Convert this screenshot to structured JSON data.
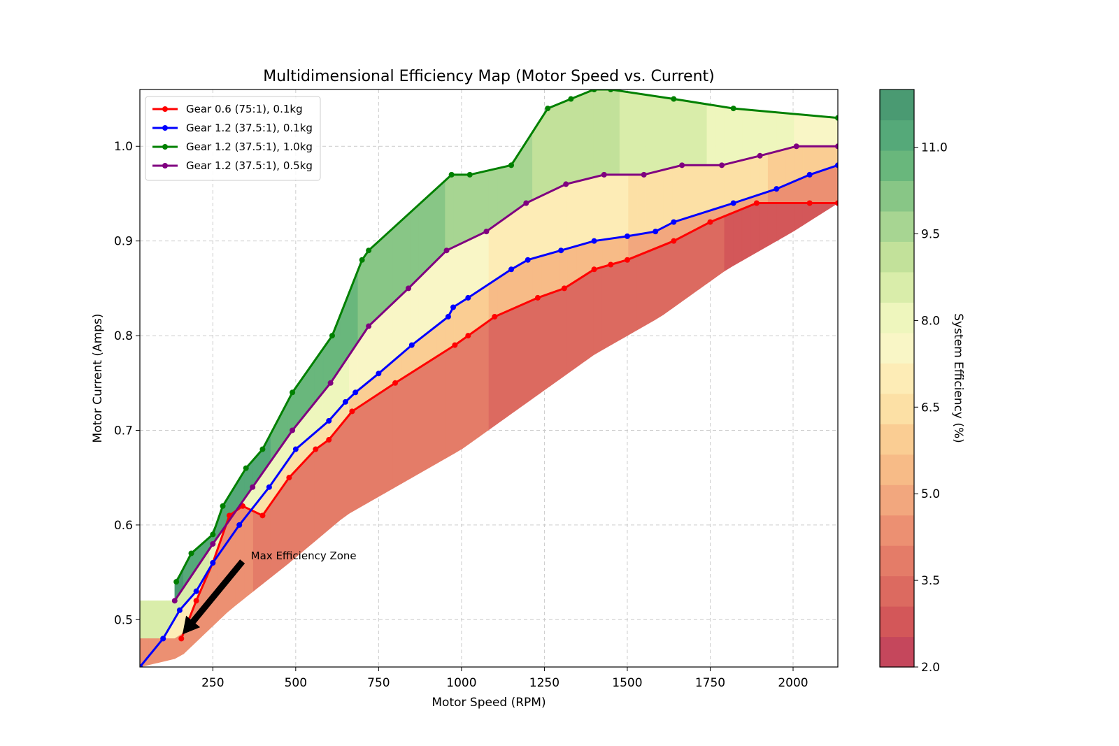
{
  "chart_data": {
    "type": "line",
    "title": "Multidimensional Efficiency Map (Motor Speed vs. Current)",
    "xlabel": "Motor Speed (RPM)",
    "ylabel": "Motor Current (Amps)",
    "xlim": [
      30,
      2135
    ],
    "ylim": [
      0.45,
      1.06
    ],
    "xticks": [
      250,
      500,
      750,
      1000,
      1250,
      1500,
      1750,
      2000
    ],
    "yticks": [
      0.5,
      0.6,
      0.7,
      0.8,
      0.9,
      1.0
    ],
    "grid": true,
    "legend_position": "upper-left",
    "series": [
      {
        "name": "Gear 0.6 (75:1), 0.1kg",
        "color": "#ff0000",
        "x": [
          155,
          200,
          250,
          300,
          340,
          400,
          480,
          560,
          600,
          670,
          800,
          980,
          1020,
          1100,
          1230,
          1310,
          1400,
          1450,
          1500,
          1640,
          1750,
          1890,
          2050,
          2135
        ],
        "y": [
          0.48,
          0.52,
          0.56,
          0.61,
          0.62,
          0.61,
          0.65,
          0.68,
          0.69,
          0.72,
          0.75,
          0.79,
          0.8,
          0.82,
          0.84,
          0.85,
          0.87,
          0.875,
          0.88,
          0.9,
          0.92,
          0.94,
          0.94,
          0.94
        ]
      },
      {
        "name": "Gear 1.2 (37.5:1), 0.1kg",
        "color": "#0000ff",
        "x": [
          30,
          100,
          150,
          200,
          250,
          330,
          420,
          500,
          600,
          650,
          680,
          750,
          850,
          960,
          975,
          1020,
          1150,
          1200,
          1300,
          1400,
          1500,
          1585,
          1640,
          1820,
          1950,
          2050,
          2135
        ],
        "y": [
          0.45,
          0.48,
          0.51,
          0.53,
          0.56,
          0.6,
          0.64,
          0.68,
          0.71,
          0.73,
          0.74,
          0.76,
          0.79,
          0.82,
          0.83,
          0.84,
          0.87,
          0.88,
          0.89,
          0.9,
          0.905,
          0.91,
          0.92,
          0.94,
          0.955,
          0.97,
          0.98
        ]
      },
      {
        "name": "Gear 1.2 (37.5:1), 1.0kg",
        "color": "#008000",
        "x": [
          140,
          185,
          250,
          280,
          350,
          400,
          490,
          610,
          700,
          720,
          970,
          1025,
          1150,
          1260,
          1330,
          1400,
          1450,
          1640,
          1820,
          2135
        ],
        "y": [
          0.54,
          0.57,
          0.59,
          0.62,
          0.66,
          0.68,
          0.74,
          0.8,
          0.88,
          0.89,
          0.97,
          0.97,
          0.98,
          1.04,
          1.05,
          1.06,
          1.06,
          1.05,
          1.04,
          1.03
        ]
      },
      {
        "name": "Gear 1.2 (37.5:1), 0.5kg",
        "color": "#800080",
        "x": [
          135,
          250,
          370,
          490,
          605,
          720,
          840,
          955,
          1075,
          1195,
          1315,
          1430,
          1550,
          1665,
          1785,
          1900,
          2010,
          2135
        ],
        "y": [
          0.52,
          0.58,
          0.64,
          0.7,
          0.75,
          0.81,
          0.85,
          0.89,
          0.91,
          0.94,
          0.96,
          0.97,
          0.97,
          0.98,
          0.98,
          0.99,
          1.0,
          1.0
        ]
      }
    ],
    "colorbar": {
      "label": "System Efficiency (%)",
      "range": [
        2.0,
        12.0
      ],
      "ticks": [
        2.0,
        3.5,
        5.0,
        6.5,
        8.0,
        9.5,
        11.0
      ],
      "colors": [
        "#c5475c",
        "#d35759",
        "#dc6a60",
        "#e47c68",
        "#ec9072",
        "#f2a77e",
        "#f7bb87",
        "#facd93",
        "#fce0a5",
        "#fdecb6",
        "#f9f6c6",
        "#eef6bd",
        "#d9edaa",
        "#c2e19a",
        "#a7d592",
        "#88c686",
        "#69b77c",
        "#55a979",
        "#4a9a72"
      ]
    },
    "annotations": [
      {
        "text": "Max Efficiency Zone",
        "xy": [
          150,
          0.48
        ],
        "xytext": [
          255,
          0.58
        ]
      }
    ]
  }
}
